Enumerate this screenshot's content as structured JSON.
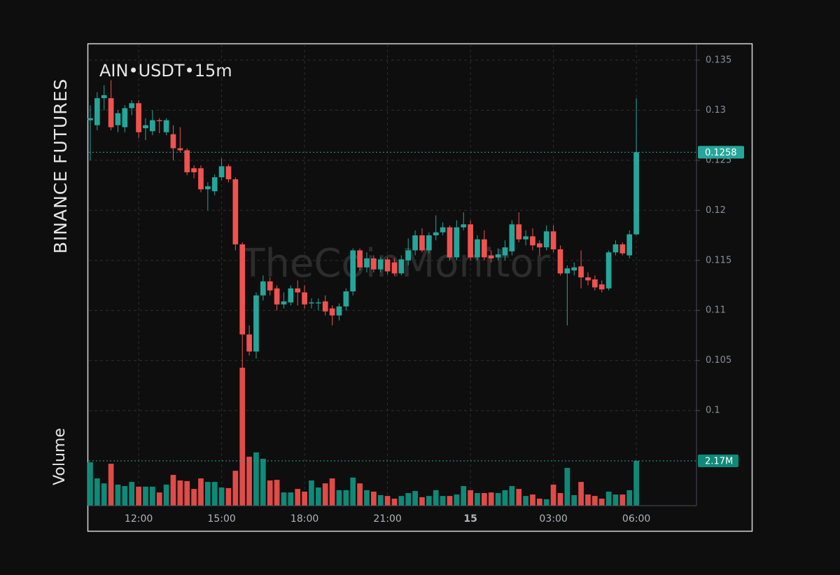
{
  "chart_data": {
    "type": "candlestick",
    "title": "AIN•USDT•15m",
    "side_label": "BINANCE FUTURES",
    "volume_label": "Volume",
    "watermark": "TheCoinMonitor",
    "open": [
      0.129,
      0.1285,
      0.1312,
      0.1312,
      0.1285,
      0.1283,
      0.1302,
      0.1307,
      0.1282,
      0.1279,
      0.129,
      0.1278,
      0.1276,
      0.1262,
      0.126,
      0.1242,
      0.1242,
      0.1221,
      0.1219,
      0.1233,
      0.1244,
      0.1231,
      0.1166,
      0.1076,
      0.1059,
      0.1115,
      0.1129,
      0.1122,
      0.1106,
      0.1108,
      0.1122,
      0.1118,
      0.1107,
      0.1107,
      0.1109,
      0.1102,
      0.1095,
      0.1104,
      0.1119,
      0.116,
      0.1143,
      0.1152,
      0.1141,
      0.1151,
      0.1148,
      0.1137,
      0.115,
      0.116,
      0.1175,
      0.116,
      0.1175,
      0.1178,
      0.1183,
      0.1153,
      0.1183,
      0.1186,
      0.1153,
      0.1171,
      0.1155,
      0.1153,
      0.1155,
      0.1159,
      0.1186,
      0.1171,
      0.1174,
      0.1167,
      0.1163,
      0.1179,
      0.1161,
      0.1137,
      0.114,
      0.1144,
      0.1133,
      0.1131,
      0.1126,
      0.1122,
      0.1158,
      0.1166,
      0.1155,
      0.1176
    ],
    "high": [
      0.1305,
      0.1318,
      0.1325,
      0.133,
      0.13,
      0.1305,
      0.131,
      0.131,
      0.1292,
      0.13,
      0.1292,
      0.1292,
      0.1285,
      0.1283,
      0.1262,
      0.1245,
      0.1245,
      0.1228,
      0.1236,
      0.1252,
      0.1246,
      0.1233,
      0.1168,
      0.1085,
      0.1118,
      0.1135,
      0.1133,
      0.1125,
      0.1118,
      0.1125,
      0.113,
      0.1125,
      0.1112,
      0.1112,
      0.1115,
      0.1105,
      0.1107,
      0.1122,
      0.1162,
      0.1162,
      0.1158,
      0.1155,
      0.1153,
      0.1153,
      0.1152,
      0.1155,
      0.1172,
      0.118,
      0.1182,
      0.1178,
      0.1195,
      0.1188,
      0.1185,
      0.119,
      0.1198,
      0.119,
      0.1175,
      0.118,
      0.116,
      0.1162,
      0.117,
      0.119,
      0.1198,
      0.118,
      0.1182,
      0.117,
      0.1185,
      0.1185,
      0.1165,
      0.1145,
      0.1148,
      0.116,
      0.1138,
      0.1135,
      0.113,
      0.116,
      0.117,
      0.1168,
      0.118,
      0.1312
    ],
    "low": [
      0.125,
      0.128,
      0.13,
      0.128,
      0.1278,
      0.1278,
      0.1295,
      0.1272,
      0.127,
      0.1275,
      0.1277,
      0.1275,
      0.125,
      0.1258,
      0.1235,
      0.1232,
      0.1218,
      0.12,
      0.1215,
      0.123,
      0.1228,
      0.116,
      0.104,
      0.1055,
      0.1052,
      0.111,
      0.1115,
      0.11,
      0.1102,
      0.1105,
      0.1105,
      0.1102,
      0.1102,
      0.11,
      0.1095,
      0.1085,
      0.109,
      0.11,
      0.1115,
      0.114,
      0.1138,
      0.1138,
      0.1138,
      0.1136,
      0.1135,
      0.1135,
      0.1145,
      0.1155,
      0.1158,
      0.1157,
      0.117,
      0.1175,
      0.115,
      0.115,
      0.118,
      0.115,
      0.115,
      0.115,
      0.1148,
      0.115,
      0.115,
      0.1155,
      0.1168,
      0.1165,
      0.116,
      0.1155,
      0.116,
      0.1158,
      0.1135,
      0.1085,
      0.1135,
      0.1122,
      0.1125,
      0.112,
      0.1118,
      0.112,
      0.1155,
      0.1155,
      0.1152,
      0.1175
    ],
    "close": [
      0.1292,
      0.1312,
      0.1315,
      0.1283,
      0.1297,
      0.1302,
      0.1307,
      0.1278,
      0.1285,
      0.129,
      0.1289,
      0.129,
      0.1262,
      0.126,
      0.1238,
      0.1238,
      0.1221,
      0.1224,
      0.1233,
      0.1244,
      0.1231,
      0.1166,
      0.1076,
      0.1059,
      0.1115,
      0.1129,
      0.112,
      0.1106,
      0.1109,
      0.1122,
      0.1118,
      0.1106,
      0.1108,
      0.1108,
      0.1099,
      0.1095,
      0.1104,
      0.1119,
      0.116,
      0.1143,
      0.1152,
      0.1141,
      0.1151,
      0.1139,
      0.1137,
      0.1151,
      0.116,
      0.1175,
      0.116,
      0.1175,
      0.1178,
      0.1183,
      0.1153,
      0.1183,
      0.1186,
      0.1153,
      0.1171,
      0.1153,
      0.1152,
      0.1156,
      0.1163,
      0.1186,
      0.1171,
      0.1174,
      0.1165,
      0.1163,
      0.1179,
      0.1161,
      0.1137,
      0.1142,
      0.1143,
      0.1133,
      0.113,
      0.1123,
      0.1121,
      0.1158,
      0.1166,
      0.1157,
      0.1176,
      0.1258
    ],
    "volume": [
      2100000,
      1320000,
      1080000,
      2030000,
      1020000,
      950000,
      1150000,
      920000,
      920000,
      920000,
      640000,
      1020000,
      1490000,
      1220000,
      1190000,
      810000,
      1320000,
      1150000,
      1150000,
      880000,
      850000,
      1690000,
      6680000,
      2370000,
      2580000,
      2270000,
      1220000,
      1250000,
      640000,
      640000,
      810000,
      680000,
      1220000,
      880000,
      1080000,
      1320000,
      750000,
      750000,
      1360000,
      1080000,
      750000,
      680000,
      510000,
      470000,
      340000,
      470000,
      610000,
      710000,
      410000,
      470000,
      750000,
      470000,
      470000,
      540000,
      950000,
      750000,
      610000,
      610000,
      640000,
      610000,
      750000,
      950000,
      810000,
      470000,
      540000,
      340000,
      310000,
      1020000,
      610000,
      1830000,
      510000,
      1150000,
      540000,
      470000,
      340000,
      680000,
      540000,
      540000,
      750000,
      2170000
    ],
    "xlim": [
      -0.2,
      87.7
    ],
    "xticks": [
      {
        "value": 7,
        "label": "12:00"
      },
      {
        "value": 19,
        "label": "15:00"
      },
      {
        "value": 31,
        "label": "18:00"
      },
      {
        "value": 43,
        "label": "21:00"
      },
      {
        "value": 55,
        "label": "15"
      },
      {
        "value": 67,
        "label": "03:00"
      },
      {
        "value": 79,
        "label": "06:00"
      }
    ],
    "ylim": [
      0.0905,
      0.1366
    ],
    "yticks": [
      0.1,
      0.105,
      0.11,
      0.115,
      0.12,
      0.125,
      0.13,
      0.135
    ],
    "volume_lim": [
      0,
      6850000
    ],
    "last_price": 0.1258,
    "last_volume": {
      "value": 2170000,
      "label": "2.17M"
    },
    "up_color": "#26a69a",
    "down_color": "#ef5350",
    "up_volume_color": "#0f8a78",
    "down_volume_color": "#e04b48",
    "grid": true
  }
}
